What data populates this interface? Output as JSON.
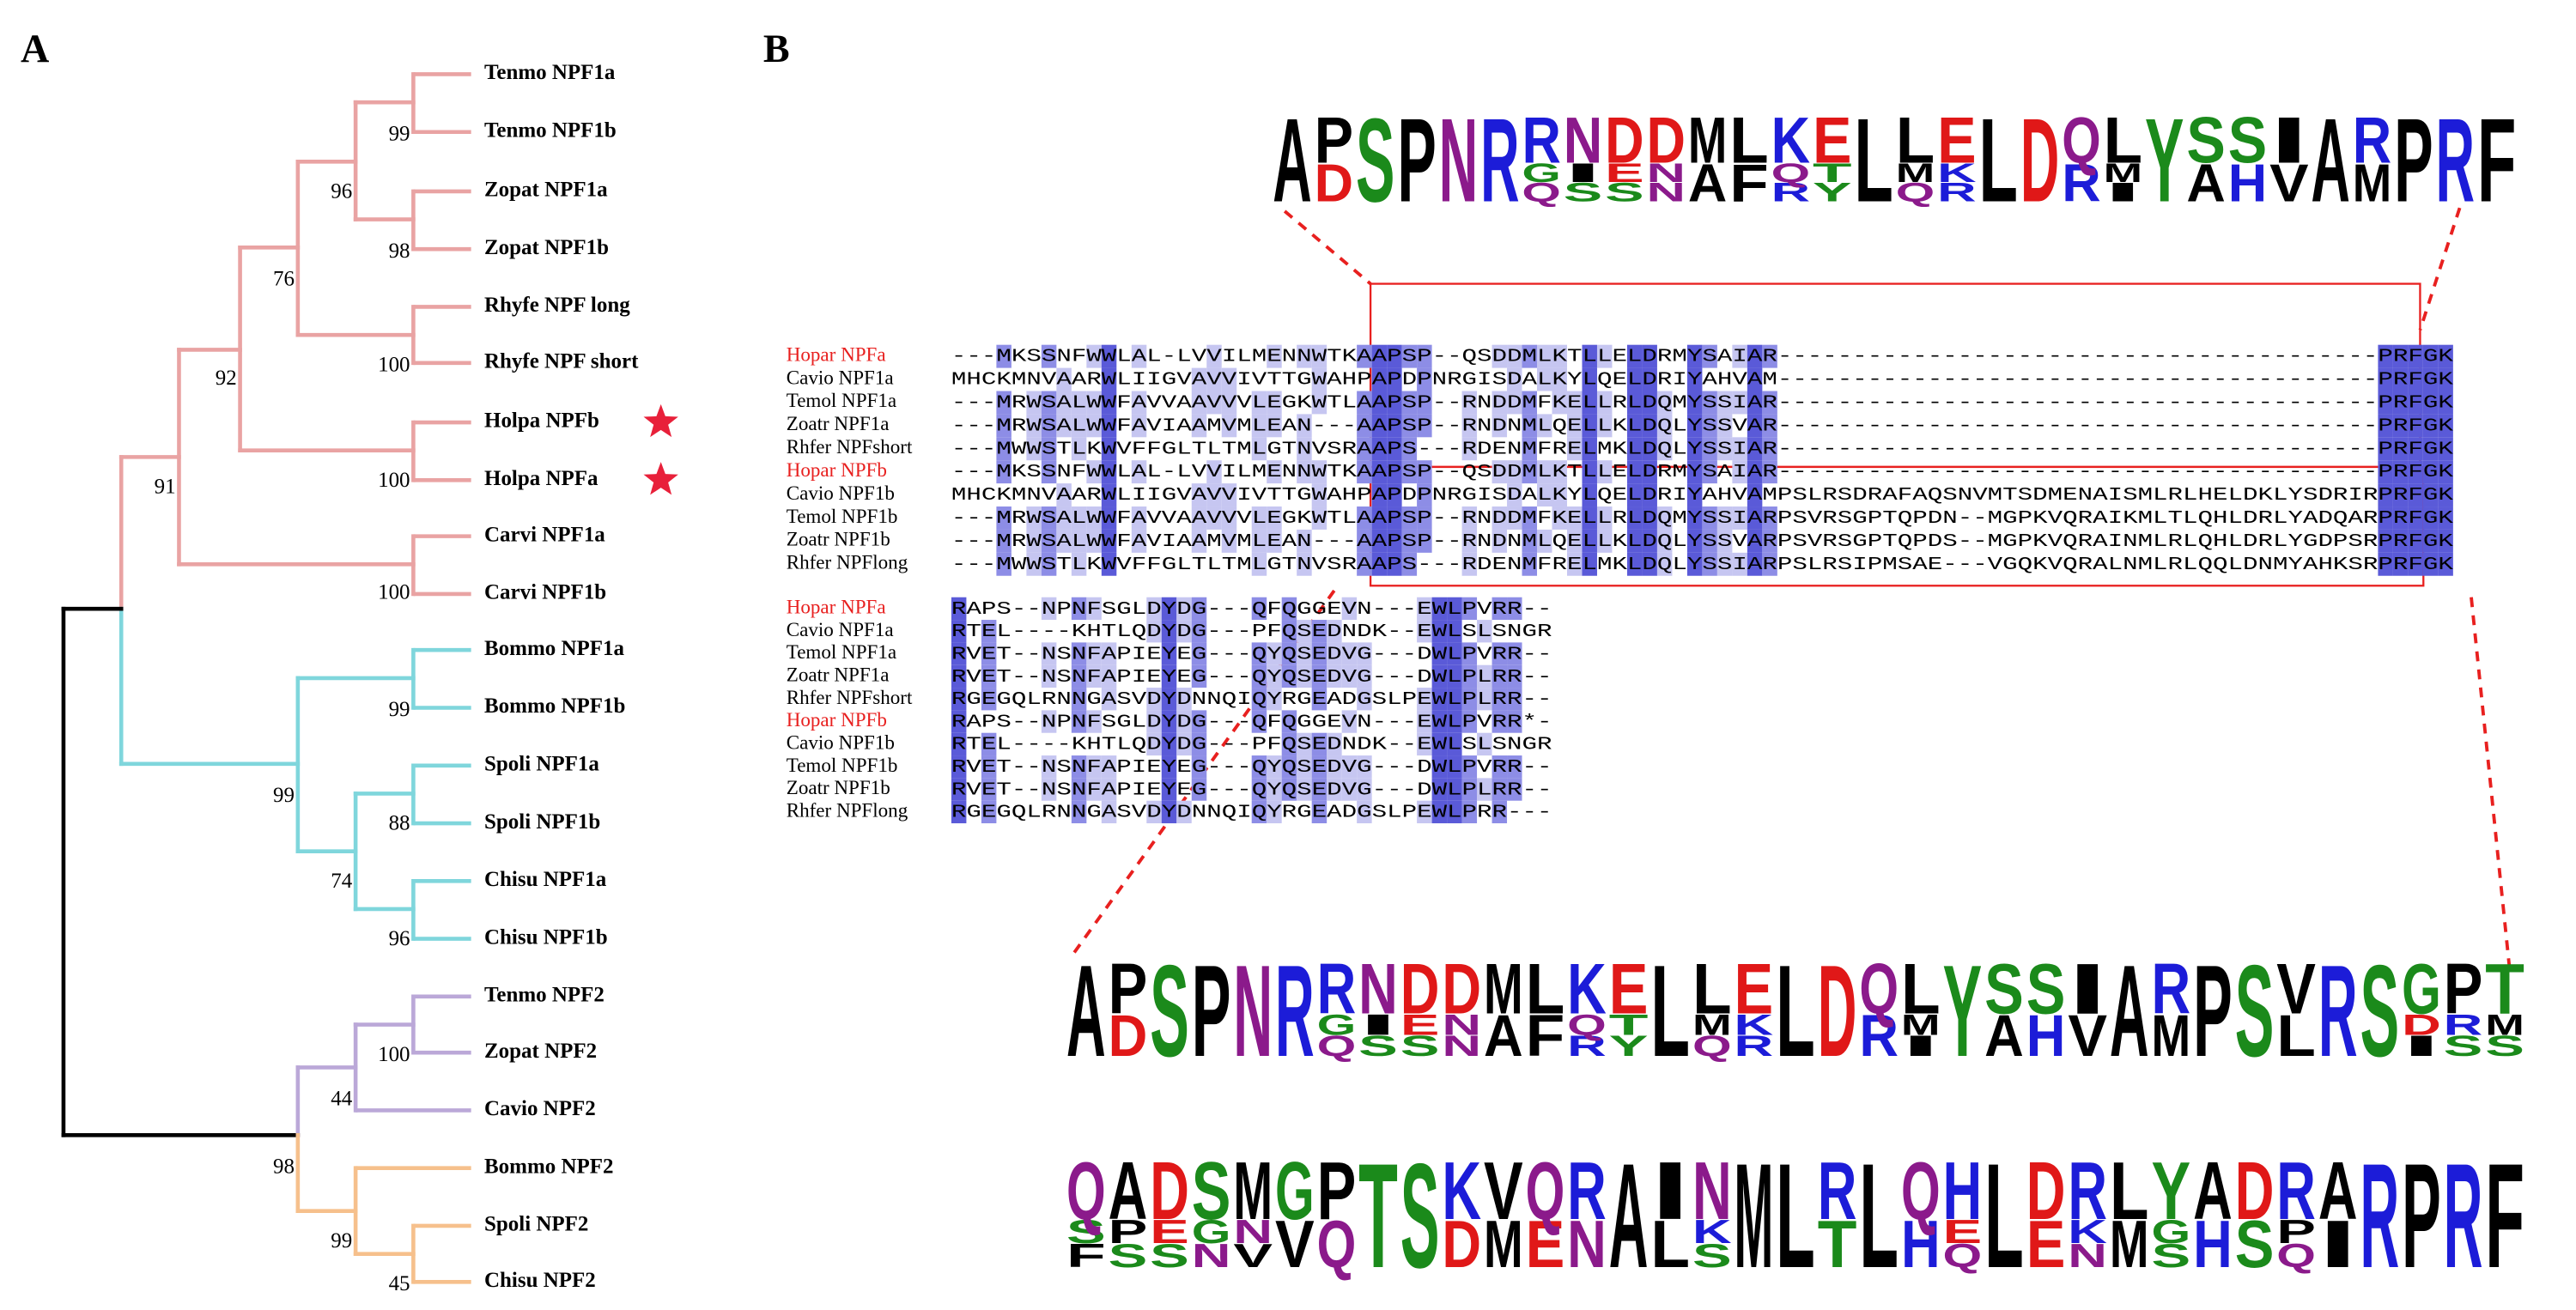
{
  "panels": [
    "A",
    "B"
  ],
  "tree": {
    "leaves": [
      "Tenmo NPF1a",
      "Tenmo NPF1b",
      "Zopat  NPF1a",
      "Zopat NPF1b",
      "Rhyfe NPF long",
      "Rhyfe NPF short",
      "Holpa NPFb",
      "Holpa NPFa",
      "Carvi NPF1a",
      "Carvi  NPF1b",
      "Bommo NPF1a",
      "Bommo NPF1b",
      "Spoli NPF1a",
      "Spoli NPF1b",
      "Chisu NPF1a",
      "Chisu NPF1b",
      "Tenmo NPF2",
      "Zopat NPF2",
      "Cavio NPF2",
      "Bommo NPF2",
      "Spoli NPF2",
      "Chisu NPF2"
    ],
    "supports": [
      99,
      98,
      96,
      100,
      76,
      100,
      92,
      100,
      91,
      99,
      88,
      96,
      74,
      99,
      100,
      44,
      98,
      99,
      45
    ]
  },
  "alignment": {
    "blocks": [
      {
        "rows": [
          {
            "name": "Hopar NPFa",
            "sequence": "---MKSSNFWWLAL-LVVILMENNWTKAAPSP--QSDDMLKTLLELDRMYSAIAR----------------------------------------PRFGK"
          },
          {
            "name": "Cavio NPF1a",
            "sequence": "MHCKMNVAARWLIIGVAVVIVTTGWAHPAPDPNRGISDALKYLQELDRIYAHVAM----------------------------------------PRFGK"
          },
          {
            "name": "Temol NPF1a",
            "sequence": "---MRWSALWWFAVVAAVVVLEGKWTLAAPSP--RNDDMFKELLRLDQMYSSIAR----------------------------------------PRFGK"
          },
          {
            "name": "Zoatr NPF1a",
            "sequence": "---MRWSALWWFAVIAAMVMLEAN---AAPSP--RNDNMLQELLKLDQLYSSVAR----------------------------------------PRFGK"
          },
          {
            "name": "Rhfer NPFshort",
            "sequence": "---MWWSTLKWVFFGLTLTMLGTNVSRAAPS---RDENMFRELMKLDQLYSSIAR----------------------------------------PRFGK"
          },
          {
            "name": "Hopar NPFb",
            "sequence": "---MKSSNFWWLAL-LVVILMENNWTKAAPSP--QSDDMLKTLLELDRMYSAIAR----------------------------------------PRFGK"
          },
          {
            "name": "Cavio NPF1b",
            "sequence": "MHCKMNVAARWLIIGVAVVIVTTGWAHPAPDPNRGISDALKYLQELDRIYAHVAMPSLRSDRAFAQSNVMTSDMENAISMLRLHELDKLYSDRIRPRFGK"
          },
          {
            "name": "Temol NPF1b",
            "sequence": "---MRWSALWWFAVVAAVVVLEGKWTLAAPSP--RNDDMFKELLRLDQMYSSIARPSVRSGPTQPDN--MGPKVQRAIKMLTLQHLDRLYADQARPRFGK"
          },
          {
            "name": "Zoatr NPF1b",
            "sequence": "---MRWSALWWFAVIAAMVMLEAN---AAPSP--RNDNMLQELLKLDQLYSSVARPSVRSGPTQPDS--MGPKVQRAINMLRLQHLDRLYGDPSRPRFGK"
          },
          {
            "name": "Rhfer NPFlong",
            "sequence": "---MWWSTLKWVFFGLTLTMLGTNVSRAAPS---RDENMFRELMKLDQLYSSIARPSLRSIPMSAE---VGQKVQRALNMLRLQQLDNMYAHKSRPRFGK"
          }
        ]
      },
      {
        "rows": [
          {
            "name": "Hopar NPFa",
            "sequence": "RAPS--NPNFSGLDYDG---QFQGGEVN---EWLPVRR--"
          },
          {
            "name": "Cavio NPF1a",
            "sequence": "RTEL----KHTLQDYDG---PFQSEDNDK--EWLSLSNGR"
          },
          {
            "name": "Temol NPF1a",
            "sequence": "RVET--NSNFAPIEYEG---QYQSEDVG---DWLPVRR--"
          },
          {
            "name": "Zoatr NPF1a",
            "sequence": "RVET--NSNFAPIEYEG---QYQSEDVG---DWLPLRR--"
          },
          {
            "name": "Rhfer NPFshort",
            "sequence": "RGEGQLRNNGASVDYDNNQIQYRGEADGSLPEWLPLRR--"
          },
          {
            "name": "Hopar NPFb",
            "sequence": "RAPS--NPNFSGLDYDG---QFQGGEVN---EWLPVRR*-"
          },
          {
            "name": "Cavio NPF1b",
            "sequence": "RTEL----KHTLQDYDG---PFQSEDNDK--EWLSLSNGR"
          },
          {
            "name": "Temol NPF1b",
            "sequence": "RVET--NSNFAPIEYEG---QYQSEDVG---DWLPVRR--"
          },
          {
            "name": "Zoatr NPF1b",
            "sequence": "RVET--NSNFAPIEYEG---QYQSEDVG---DWLPLRR--"
          },
          {
            "name": "Rhfer NPFlong",
            "sequence": "RGEGQLRNNGASVDYDNNQIQYRGEADGSLPEWLPRR---"
          }
        ]
      }
    ]
  },
  "logos": [
    {
      "columns": [
        [
          "A"
        ],
        [
          "P",
          "D"
        ],
        [
          "S"
        ],
        [
          "P"
        ],
        [
          "N"
        ],
        [
          "R"
        ],
        [
          "R",
          "G",
          "Q"
        ],
        [
          "N",
          "I",
          "S"
        ],
        [
          "D",
          "E",
          "S"
        ],
        [
          "D",
          "N",
          "N"
        ],
        [
          "M",
          "A"
        ],
        [
          "L",
          "F"
        ],
        [
          "K",
          "Q",
          "R"
        ],
        [
          "E",
          "T",
          "Y"
        ],
        [
          "L"
        ],
        [
          "L",
          "M",
          "Q"
        ],
        [
          "E",
          "K",
          "R"
        ],
        [
          "L"
        ],
        [
          "D"
        ],
        [
          "Q",
          "R"
        ],
        [
          "L",
          "M",
          "I"
        ],
        [
          "Y"
        ],
        [
          "S",
          "A"
        ],
        [
          "S",
          "H"
        ],
        [
          "I",
          "V"
        ],
        [
          "A"
        ],
        [
          "R",
          "M"
        ],
        [
          "P"
        ],
        [
          "R"
        ],
        [
          "F"
        ]
      ]
    },
    {
      "columns": [
        [
          "A"
        ],
        [
          "P",
          "D"
        ],
        [
          "S"
        ],
        [
          "P"
        ],
        [
          "N"
        ],
        [
          "R"
        ],
        [
          "R",
          "G",
          "Q"
        ],
        [
          "N",
          "I",
          "S"
        ],
        [
          "D",
          "E",
          "S"
        ],
        [
          "D",
          "N",
          "N"
        ],
        [
          "M",
          "A"
        ],
        [
          "L",
          "F"
        ],
        [
          "K",
          "Q",
          "R"
        ],
        [
          "E",
          "T",
          "Y"
        ],
        [
          "L"
        ],
        [
          "L",
          "M",
          "Q"
        ],
        [
          "E",
          "K",
          "R"
        ],
        [
          "L"
        ],
        [
          "D"
        ],
        [
          "Q",
          "R"
        ],
        [
          "L",
          "M",
          "I"
        ],
        [
          "Y"
        ],
        [
          "S",
          "A"
        ],
        [
          "S",
          "H"
        ],
        [
          "I",
          "V"
        ],
        [
          "A"
        ],
        [
          "R",
          "M"
        ],
        [
          "P"
        ],
        [
          "S"
        ],
        [
          "V",
          "L"
        ],
        [
          "R"
        ],
        [
          "S"
        ],
        [
          "G",
          "D",
          "I"
        ],
        [
          "P",
          "R",
          "S"
        ],
        [
          "T",
          "M",
          "S"
        ]
      ]
    },
    {
      "columns": [
        [
          "Q",
          "S",
          "F"
        ],
        [
          "A",
          "P",
          "S"
        ],
        [
          "D",
          "E",
          "S"
        ],
        [
          "S",
          "G",
          "N"
        ],
        [
          "M",
          "N",
          "V"
        ],
        [
          "G",
          "V"
        ],
        [
          "P",
          "Q"
        ],
        [
          "T"
        ],
        [
          "S"
        ],
        [
          "K",
          "D"
        ],
        [
          "V",
          "M"
        ],
        [
          "Q",
          "E"
        ],
        [
          "R",
          "N"
        ],
        [
          "A"
        ],
        [
          "I",
          "L"
        ],
        [
          "N",
          "K",
          "S"
        ],
        [
          "M"
        ],
        [
          "L"
        ],
        [
          "R",
          "T"
        ],
        [
          "L"
        ],
        [
          "Q",
          "H"
        ],
        [
          "H",
          "E",
          "Q"
        ],
        [
          "L"
        ],
        [
          "D",
          "E"
        ],
        [
          "R",
          "K",
          "N"
        ],
        [
          "L",
          "M"
        ],
        [
          "Y",
          "G",
          "S"
        ],
        [
          "A",
          "H"
        ],
        [
          "D",
          "S"
        ],
        [
          "R",
          "P",
          "Q"
        ],
        [
          "A",
          "I"
        ],
        [
          "R"
        ],
        [
          "P"
        ],
        [
          "R"
        ],
        [
          "F"
        ]
      ]
    }
  ]
}
